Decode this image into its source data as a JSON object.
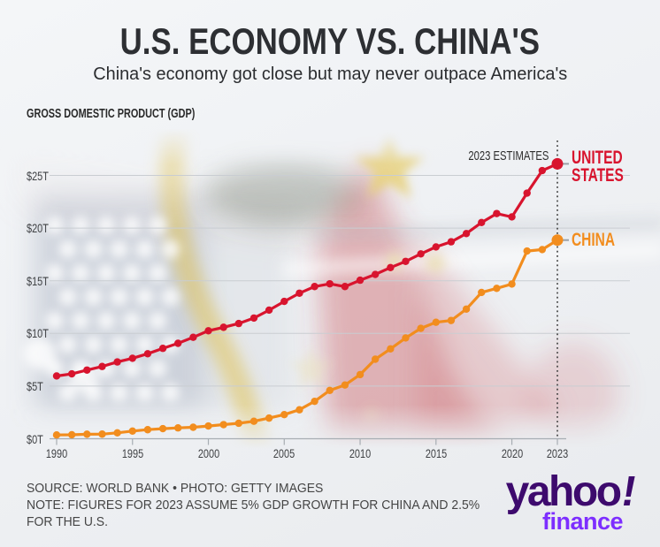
{
  "header": {
    "title": "U.S. ECONOMY VS. CHINA'S",
    "subtitle": "China's economy got close but may never outpace America's"
  },
  "chart_data": {
    "type": "line",
    "title": "GROSS DOMESTIC PRODUCT (GDP)",
    "x": [
      1990,
      1991,
      1992,
      1993,
      1994,
      1995,
      1996,
      1997,
      1998,
      1999,
      2000,
      2001,
      2002,
      2003,
      2004,
      2005,
      2006,
      2007,
      2008,
      2009,
      2010,
      2011,
      2012,
      2013,
      2014,
      2015,
      2016,
      2017,
      2018,
      2019,
      2020,
      2021,
      2022,
      2023
    ],
    "series": [
      {
        "name": "UNITED STATES",
        "label_lines": [
          "UNITED",
          "STATES"
        ],
        "color": "#d8142e",
        "values": [
          5.96,
          6.16,
          6.52,
          6.86,
          7.29,
          7.64,
          8.07,
          8.58,
          9.06,
          9.63,
          10.25,
          10.58,
          10.94,
          11.46,
          12.21,
          13.04,
          13.82,
          14.45,
          14.71,
          14.45,
          15.05,
          15.6,
          16.25,
          16.84,
          17.55,
          18.21,
          18.7,
          19.48,
          20.53,
          21.38,
          21.06,
          23.32,
          25.46,
          26.1
        ]
      },
      {
        "name": "CHINA",
        "label_lines": [
          "CHINA"
        ],
        "color": "#f28d1e",
        "values": [
          0.36,
          0.38,
          0.43,
          0.44,
          0.56,
          0.73,
          0.86,
          0.96,
          1.03,
          1.09,
          1.21,
          1.34,
          1.47,
          1.66,
          1.96,
          2.29,
          2.75,
          3.55,
          4.59,
          5.1,
          6.09,
          7.55,
          8.53,
          9.57,
          10.48,
          11.06,
          11.23,
          12.31,
          13.89,
          14.28,
          14.69,
          17.82,
          17.96,
          18.86
        ]
      }
    ],
    "yticks": [
      {
        "label": "$0T",
        "value": 0
      },
      {
        "label": "$5T",
        "value": 5
      },
      {
        "label": "$10T",
        "value": 10
      },
      {
        "label": "$15T",
        "value": 15
      },
      {
        "label": "$20T",
        "value": 20
      },
      {
        "label": "$25T",
        "value": 25
      }
    ],
    "xticks": [
      1990,
      1995,
      2000,
      2005,
      2010,
      2015,
      2020,
      2023
    ],
    "ylim": [
      0,
      27
    ],
    "annotation": "2023 ESTIMATES",
    "grid": true,
    "legend_position": "right"
  },
  "footer": {
    "lines": [
      "SOURCE: WORLD BANK • PHOTO: GETTY IMAGES",
      "NOTE: FIGURES FOR 2023 ASSUME 5% GDP GROWTH FOR CHINA AND 2.5%",
      "FOR THE U.S."
    ]
  },
  "logo": {
    "word": "yahoo",
    "bang": "!",
    "sub": "finance",
    "color_main": "#3d0a6d",
    "color_sub": "#7d2eff"
  }
}
